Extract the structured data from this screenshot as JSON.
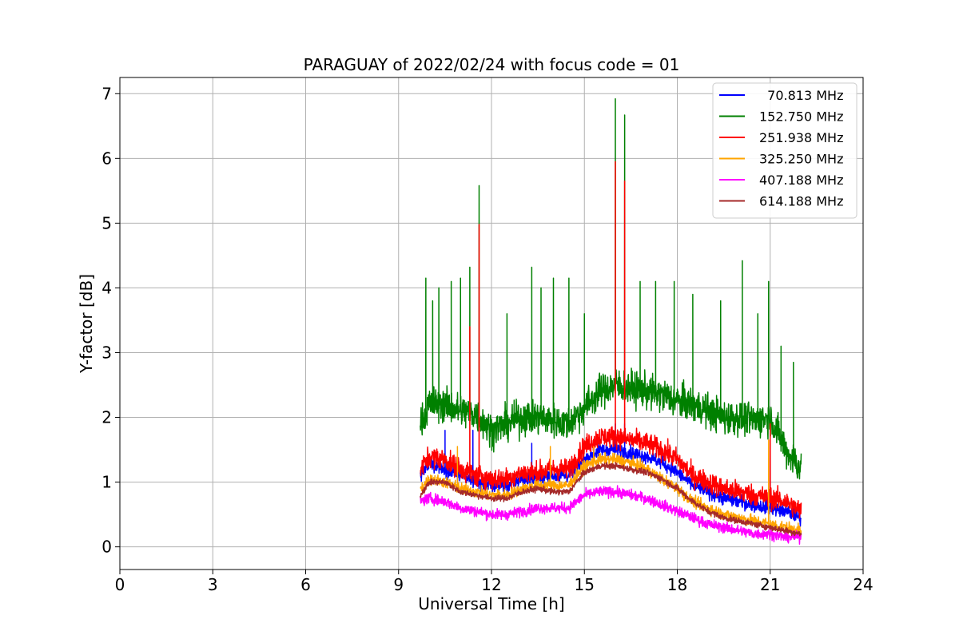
{
  "chart_data": {
    "type": "line",
    "title": "PARAGUAY of 2022/02/24 with focus code = 01",
    "xlabel": "Universal Time [h]",
    "ylabel": "Y-factor [dB]",
    "xlim": [
      0,
      24
    ],
    "ylim": [
      -0.35,
      7.25
    ],
    "xticks": [
      0,
      3,
      6,
      9,
      12,
      15,
      18,
      21,
      24
    ],
    "yticks": [
      0,
      1,
      2,
      3,
      4,
      5,
      6,
      7
    ],
    "xtick_labels": [
      "0",
      "3",
      "6",
      "9",
      "12",
      "15",
      "18",
      "21",
      "24"
    ],
    "ytick_labels": [
      "0",
      "1",
      "2",
      "3",
      "4",
      "5",
      "6",
      "7"
    ],
    "grid": true,
    "legend_position": "top-right",
    "data_range_x": [
      9.7,
      22.0
    ],
    "series": [
      {
        "name": "  70.813 MHz",
        "color": "#0000ff",
        "x": [
          9.7,
          10.0,
          10.5,
          11.0,
          11.5,
          12.0,
          12.5,
          13.0,
          13.5,
          14.0,
          14.5,
          15.0,
          15.5,
          16.0,
          16.5,
          17.0,
          17.5,
          18.0,
          18.5,
          19.0,
          19.5,
          20.0,
          20.5,
          21.0,
          21.5,
          22.0
        ],
        "values": [
          1.1,
          1.3,
          1.2,
          1.1,
          1.0,
          0.95,
          0.95,
          1.05,
          1.05,
          1.1,
          1.1,
          1.35,
          1.5,
          1.5,
          1.45,
          1.4,
          1.3,
          1.15,
          0.95,
          0.85,
          0.75,
          0.7,
          0.65,
          0.6,
          0.55,
          0.45
        ],
        "noise": 0.18,
        "spikes": [
          [
            10.5,
            1.8
          ],
          [
            11.4,
            1.8
          ],
          [
            13.3,
            1.6
          ],
          [
            16.0,
            1.9
          ],
          [
            16.3,
            1.9
          ],
          [
            21.0,
            1.6
          ]
        ]
      },
      {
        "name": "152.750 MHz",
        "color": "#008000",
        "x": [
          9.7,
          10.0,
          10.5,
          11.0,
          11.5,
          12.0,
          12.5,
          13.0,
          13.5,
          14.0,
          14.5,
          15.0,
          15.5,
          16.0,
          16.5,
          17.0,
          17.5,
          18.0,
          18.5,
          19.0,
          19.5,
          20.0,
          20.5,
          21.0,
          21.5,
          22.0
        ],
        "values": [
          1.9,
          2.2,
          2.2,
          2.1,
          2.05,
          1.8,
          1.9,
          2.0,
          2.0,
          1.95,
          1.9,
          2.15,
          2.4,
          2.5,
          2.45,
          2.4,
          2.35,
          2.25,
          2.2,
          2.1,
          2.0,
          2.0,
          1.95,
          2.0,
          1.5,
          1.2
        ],
        "noise": 0.45,
        "spikes": [
          [
            9.88,
            4.15
          ],
          [
            10.1,
            3.8
          ],
          [
            10.3,
            4.0
          ],
          [
            10.7,
            4.1
          ],
          [
            11.0,
            4.15
          ],
          [
            11.3,
            4.32
          ],
          [
            11.6,
            5.58
          ],
          [
            12.5,
            3.6
          ],
          [
            13.3,
            4.32
          ],
          [
            13.6,
            4.0
          ],
          [
            14.0,
            4.15
          ],
          [
            14.5,
            4.15
          ],
          [
            15.0,
            3.6
          ],
          [
            16.0,
            6.92
          ],
          [
            16.3,
            6.67
          ],
          [
            16.8,
            4.1
          ],
          [
            17.3,
            4.1
          ],
          [
            17.9,
            4.1
          ],
          [
            18.5,
            3.9
          ],
          [
            19.4,
            3.8
          ],
          [
            20.1,
            4.42
          ],
          [
            20.6,
            3.6
          ],
          [
            20.95,
            4.1
          ],
          [
            21.35,
            3.1
          ],
          [
            21.75,
            2.85
          ]
        ]
      },
      {
        "name": "251.938 MHz",
        "color": "#ff0000",
        "x": [
          9.7,
          10.0,
          10.5,
          11.0,
          11.5,
          12.0,
          12.5,
          13.0,
          13.5,
          14.0,
          14.5,
          15.0,
          15.5,
          16.0,
          16.5,
          17.0,
          17.5,
          18.0,
          18.5,
          19.0,
          19.5,
          20.0,
          20.5,
          21.0,
          21.5,
          22.0
        ],
        "values": [
          1.2,
          1.4,
          1.35,
          1.2,
          1.1,
          1.05,
          1.05,
          1.15,
          1.15,
          1.2,
          1.2,
          1.55,
          1.7,
          1.7,
          1.65,
          1.6,
          1.5,
          1.35,
          1.1,
          1.0,
          0.9,
          0.85,
          0.8,
          0.75,
          0.7,
          0.55
        ],
        "noise": 0.28,
        "spikes": [
          [
            11.3,
            3.4
          ],
          [
            11.6,
            4.98
          ],
          [
            16.0,
            5.95
          ],
          [
            16.3,
            5.65
          ],
          [
            21.0,
            1.9
          ]
        ]
      },
      {
        "name": "325.250 MHz",
        "color": "#ffa500",
        "x": [
          9.7,
          10.0,
          10.5,
          11.0,
          11.5,
          12.0,
          12.5,
          13.0,
          13.5,
          14.0,
          14.5,
          15.0,
          15.5,
          16.0,
          16.5,
          17.0,
          17.5,
          18.0,
          18.5,
          19.0,
          19.5,
          20.0,
          20.5,
          21.0,
          21.5,
          22.0
        ],
        "values": [
          0.9,
          1.05,
          1.0,
          0.9,
          0.85,
          0.8,
          0.8,
          0.9,
          0.95,
          0.95,
          0.95,
          1.25,
          1.35,
          1.35,
          1.3,
          1.2,
          1.05,
          0.9,
          0.7,
          0.6,
          0.5,
          0.45,
          0.4,
          0.35,
          0.3,
          0.25
        ],
        "noise": 0.15,
        "spikes": [
          [
            10.9,
            1.55
          ],
          [
            13.9,
            1.55
          ],
          [
            15.3,
            1.55
          ],
          [
            20.95,
            1.65
          ]
        ]
      },
      {
        "name": "407.188 MHz",
        "color": "#ff00ff",
        "x": [
          9.7,
          10.0,
          10.5,
          11.0,
          11.5,
          12.0,
          12.5,
          13.0,
          13.5,
          14.0,
          14.5,
          15.0,
          15.5,
          16.0,
          16.5,
          17.0,
          17.5,
          18.0,
          18.5,
          19.0,
          19.5,
          20.0,
          20.5,
          21.0,
          21.5,
          22.0
        ],
        "values": [
          0.7,
          0.75,
          0.7,
          0.6,
          0.55,
          0.5,
          0.5,
          0.55,
          0.6,
          0.6,
          0.6,
          0.8,
          0.85,
          0.85,
          0.8,
          0.75,
          0.65,
          0.55,
          0.45,
          0.35,
          0.3,
          0.25,
          0.2,
          0.2,
          0.15,
          0.15
        ],
        "noise": 0.14,
        "spikes": []
      },
      {
        "name": "614.188 MHz",
        "color": "#a52a2a",
        "x": [
          9.7,
          10.0,
          10.5,
          11.0,
          11.5,
          12.0,
          12.5,
          13.0,
          13.5,
          14.0,
          14.5,
          15.0,
          15.5,
          16.0,
          16.5,
          17.0,
          17.5,
          18.0,
          18.5,
          19.0,
          19.5,
          20.0,
          20.5,
          21.0,
          21.5,
          22.0
        ],
        "values": [
          0.8,
          1.0,
          1.0,
          0.85,
          0.8,
          0.75,
          0.75,
          0.85,
          0.9,
          0.85,
          0.85,
          1.15,
          1.25,
          1.25,
          1.2,
          1.15,
          1.05,
          0.9,
          0.7,
          0.55,
          0.45,
          0.4,
          0.35,
          0.3,
          0.25,
          0.2
        ],
        "noise": 0.08,
        "spikes": []
      }
    ]
  }
}
